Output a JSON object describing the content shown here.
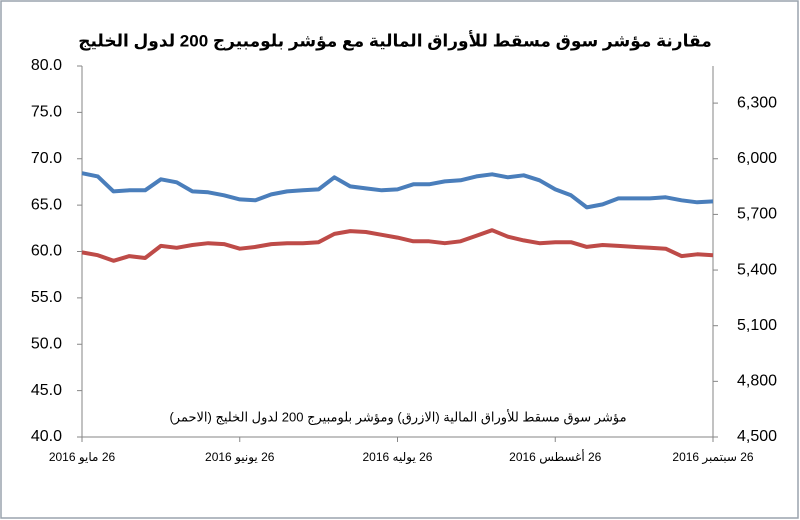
{
  "chart_data": {
    "type": "line",
    "title": "مقارنة مؤشر سوق مسقط للأوراق المالية مع مؤشر بلومبيرج 200 لدول الخليج",
    "annotation": "مؤشر سوق مسقط للأوراق المالية (الازرق) ومؤشر بلومبيرج 200 لدول الخليج (الاحمر)",
    "categories": [
      "26 مايو 2016",
      null,
      null,
      null,
      null,
      null,
      null,
      null,
      null,
      null,
      "26 يونيو 2016",
      null,
      null,
      null,
      null,
      null,
      null,
      null,
      null,
      null,
      "26 يوليه 2016",
      null,
      null,
      null,
      null,
      null,
      null,
      null,
      null,
      null,
      "26 أغسطس 2016",
      null,
      null,
      null,
      null,
      null,
      null,
      null,
      null,
      null,
      "26 سبتمبر 2016"
    ],
    "series": [
      {
        "color": "#4a7ebb",
        "axis": "y2",
        "values": [
          5922,
          5905,
          5824,
          5830,
          5830,
          5889,
          5873,
          5824,
          5819,
          5803,
          5781,
          5776,
          5808,
          5824,
          5830,
          5835,
          5900,
          5851,
          5840,
          5830,
          5835,
          5862,
          5862,
          5878,
          5884,
          5905,
          5916,
          5900,
          5911,
          5884,
          5835,
          5803,
          5738,
          5754,
          5786,
          5786,
          5786,
          5792,
          5776,
          5765,
          5770
        ]
      },
      {
        "color": "#be4b48",
        "values": [
          59.9,
          59.6,
          59.0,
          59.5,
          59.3,
          60.6,
          60.4,
          60.7,
          60.9,
          60.8,
          60.3,
          60.5,
          60.8,
          60.9,
          60.9,
          61.0,
          61.9,
          62.2,
          62.1,
          61.8,
          61.5,
          61.1,
          61.1,
          60.9,
          61.1,
          61.7,
          62.3,
          61.6,
          61.2,
          60.9,
          61.0,
          61.0,
          60.5,
          60.7,
          60.6,
          60.5,
          60.4,
          60.3,
          59.5,
          59.7,
          59.6
        ]
      }
    ],
    "ylim": [
      40,
      80
    ],
    "yticks": [
      {
        "value": 40,
        "label": "40.0"
      },
      {
        "value": 45,
        "label": "45.0"
      },
      {
        "value": 50,
        "label": "50.0"
      },
      {
        "value": 55,
        "label": "55.0"
      },
      {
        "value": 60,
        "label": "60.0"
      },
      {
        "value": 65,
        "label": "65.0"
      },
      {
        "value": 70,
        "label": "70.0"
      },
      {
        "value": 75,
        "label": "75.0"
      },
      {
        "value": 80,
        "label": "80.0"
      }
    ],
    "y2lim": [
      4500,
      6500
    ],
    "y2ticks": [
      {
        "value": 4500,
        "label": "4,500"
      },
      {
        "value": 4800,
        "label": "4,800"
      },
      {
        "value": 5100,
        "label": "5,100"
      },
      {
        "value": 5400,
        "label": "5,400"
      },
      {
        "value": 5700,
        "label": "5,700"
      },
      {
        "value": 6000,
        "label": "6,000"
      },
      {
        "value": 6300,
        "label": "6,300"
      }
    ],
    "grid": false
  }
}
